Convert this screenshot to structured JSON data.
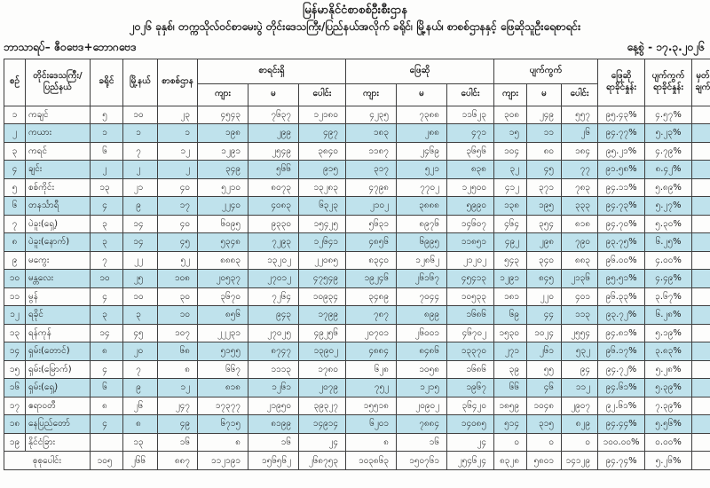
{
  "header": {
    "title1": "မြန်မာနိုင်ငံစာစစ်ဦးစီးဌာန",
    "title2": "၂၀၂၆ ခုနှစ်၊ တက္ကသိုလ်ဝင်စာမေးပွဲ တိုင်းဒေသကြီး/ပြည်နယ်အလိုက် ခရိုင်၊ မြို့နယ်၊ စာစစ်ဌာနနှင့် ဖြေဆိုသူဦးရေစာရင်း",
    "subject": "ဘာသာရပ်– ဇီဝဗေဒ+ဘောဂဗေဒ",
    "date": "နေ့စွဲ - ၁၇.၃.၂၀၂၆"
  },
  "colors": {
    "stripe": "#bfe2ec",
    "border": "#3f3f3f",
    "ink": "#1b1b1b"
  },
  "table": {
    "headers": {
      "sn": "စဉ်",
      "region": "တိုင်းဒေသကြီး/\nပြည်နယ်",
      "district": "ခရိုင်",
      "township": "မြို့နယ်",
      "center": "စာစစ်ဌာန",
      "registered": "စာရင်းရှိ",
      "attended": "ဖြေဆို",
      "absent": "ပျက်ကွက်",
      "male": "ကျား",
      "female": "မ",
      "total": "ပေါင်း",
      "attended_pct": "ဖြေဆို\nရာခိုင်နှုန်း",
      "absent_pct": "ပျက်ကွက်\nရာခိုင်နှုန်း",
      "remark": "မှတ်\nချက်"
    },
    "rows": [
      [
        "၁",
        "ကချင်",
        "၅",
        "၁၀",
        "၂၃",
        "၄၅၄၃",
        "၇၆၃၇",
        "၁၂၁၈၀",
        "၄၂၃၅",
        "၇၃၈၈",
        "၁၁၆၂၃",
        "၃၀၈",
        "၂၄၉",
        "၅၅၇",
        "၉၅.၄၃%",
        "၄.၅၇%"
      ],
      [
        "၂",
        "ကယား",
        "၁",
        "၁",
        "၁",
        "၁၉၈",
        "၂၉၉",
        "၄၉၇",
        "၁၈၃",
        "၂၈၈",
        "၄၇၁",
        "၁၅",
        "၁၁",
        "၂၆",
        "၉၄.၇၇%",
        "၅.၂၃%"
      ],
      [
        "၃",
        "ကရင်",
        "၆",
        "၇",
        "၁၂",
        "၁၂၉၁",
        "၂၅၄၉",
        "၃၈၄၀",
        "၁၁၈၇",
        "၂၄၆၉",
        "၃၆၅၆",
        "၁၀၄",
        "၈၀",
        "၁၈၄",
        "၉၅.၂၁%",
        "၄.၇၉%"
      ],
      [
        "၄",
        "ချင်း",
        "၂",
        "၂",
        "၂",
        "၃၄၉",
        "၅၆၆",
        "၉၁၅",
        "၃၁၇",
        "၅၂၁",
        "၈၃၈",
        "၃၂",
        "၄၅",
        "၇၇",
        "၉၁.၅၈%",
        "၈.၄၂%"
      ],
      [
        "၅",
        "စစ်ကိုင်း",
        "၁၃",
        "၂၁",
        "၄၀",
        "၅၂၁၀",
        "၈၀၇၃",
        "၁၃၂၈၃",
        "၄၇၉၈",
        "၇၇၀၂",
        "၁၂၅၀၀",
        "၄၁၂",
        "၃၇၁",
        "၇၈၃",
        "၉၄.၁၁%",
        "၅.၈၉%"
      ],
      [
        "၆",
        "တနင်္သာရီ",
        "၄",
        "၉",
        "၁၇",
        "၂၂၄၀",
        "၄၀၈၃",
        "၆၃၂၃",
        "၂၁၀၂",
        "၃၈၈၈",
        "၅၉၉၀",
        "၁၃၈",
        "၁၉၅",
        "၃၃၃",
        "၉၄.၇၃%",
        "၅.၂၇%"
      ],
      [
        "၇",
        "ပဲခူး(ရှေ့)",
        "၃",
        "၁၄",
        "၄၀",
        "၆၀၉၅",
        "၉၃၃၀",
        "၁၅၄၂၅",
        "၅၆၃၁",
        "၈၉၇၆",
        "၁၄၆၀၇",
        "၄၆၄",
        "၃၅၄",
        "၈၁၈",
        "၉၄.၇၀%",
        "၅.၃၀%"
      ],
      [
        "၈",
        "ပဲခူး(နောက်)",
        "၃",
        "၁၄",
        "၄၅",
        "၅၃၄၈",
        "၇၂၉၃",
        "၁၂၆၄၁",
        "၄၈၅၆",
        "၆၉၉၅",
        "၁၁၈၅၁",
        "၄၉၂",
        "၂၉၈",
        "၇၉၀",
        "၉၃.၇၅%",
        "၆.၂၅%"
      ],
      [
        "၉",
        "မကွေး",
        "၇",
        "၂၂",
        "၅၂",
        "၈၈၈၃",
        "၁၃၂၀၂",
        "၂၂၀၈၅",
        "၈၃၄၀",
        "၁၂၈၆၂",
        "၂၁၂၀၂",
        "၅၄၃",
        "၃၄၀",
        "၈၈၃",
        "၉၆.၀၀%",
        "၄.၀၀%"
      ],
      [
        "၁၀",
        "မန္တလေး",
        "၁၀",
        "၂၅",
        "၁၀၈",
        "၂၀၅၃၇",
        "၂၇၀၁၂",
        "၄၇၅၄၉",
        "၁၉၂၄၆",
        "၂၆၁၆၇",
        "၄၅၄၁၃",
        "၁၂၉၁",
        "၈၄၅",
        "၂၁၃၆",
        "၉၅.၅၁%",
        "၄.၄၉%"
      ],
      [
        "၁၁",
        "မွန်",
        "၄",
        "၁၀",
        "၃၀",
        "၃၆၇၀",
        "၇၂၆၄",
        "၁၀၉၃၄",
        "၃၄၈၉",
        "၇၀၄၄",
        "၁၀၅၃၃",
        "၁၈၁",
        "၂၂၀",
        "၄၀၁",
        "၉၆.၃၃%",
        "၃.၆၇%"
      ],
      [
        "၁၂",
        "ရခိုင်",
        "၃",
        "၃",
        "၁၀",
        "၈၅၆",
        "၉၄၃",
        "၁၇၉၉",
        "၇၈၇",
        "၈၉၉",
        "၁၆၈၆",
        "၆၉",
        "၄၄",
        "၁၁၃",
        "၉၃.၇၂%",
        "၆.၂၈%"
      ],
      [
        "၁၃",
        "ရန်ကုန်",
        "၁၄",
        "၄၅",
        "၁၀၇",
        "၂၂၂၃၁",
        "၂၇၀၂၅",
        "၄၉၂၅၆",
        "၂၀၇၀၁",
        "၂၆၀၀၁",
        "၄၆၇၀၂",
        "၁၅၃၀",
        "၁၀၂၄",
        "၂၅၅၄",
        "၉၄.၈၁%",
        "၅.၁၉%"
      ],
      [
        "၁၄",
        "ရှမ်း(တောင်)",
        "၈",
        "၂၀",
        "၆၈",
        "၅၁၅၅",
        "၈၇၄၇",
        "၁၃၉၀၂",
        "၄၈၈၄",
        "၈၄၈၆",
        "၁၃၃၇၀",
        "၂၇၁",
        "၂၆၁",
        "၅၃၂",
        "၉၆.၁၇%",
        "၃.၈၃%"
      ],
      [
        "၁၅",
        "ရှမ်း(မြောက်)",
        "၄",
        "၇",
        "၈",
        "၆၆၇",
        "၁၁၁၃",
        "၁၇၈၀",
        "၆၂၈",
        "၁၀၅၈",
        "၁၆၈၆",
        "၃၉",
        "၅၅",
        "၉၄",
        "၉၄.၇၂%",
        "၅.၂၈%"
      ],
      [
        "၁၆",
        "ရှမ်း(ရှေ့)",
        "၆",
        "၉",
        "၁၂",
        "၈၁၈",
        "၁၂၆၁",
        "၂၀၇၉",
        "၇၅၂",
        "၁၂၁၅",
        "၁၉၆၇",
        "၆၆",
        "၄၆",
        "၁၁၂",
        "၉၄.၆၁%",
        "၅.၃၉%"
      ],
      [
        "၁၇",
        "ဧရာဝတီ",
        "၈",
        "၂၆",
        "၂၄၇",
        "၁၇၃၇၇",
        "၂၁၉၅၀",
        "၃၉၃၂၇",
        "၁၅၅၁၈",
        "၂၀၉၀၂",
        "၃၆၄၂၀",
        "၁၈၅၉",
        "၁၀၄၈",
        "၂၉၀၇",
        "၉၂.၆၁%",
        "၇.၃၉%"
      ],
      [
        "၁၈",
        "နေပြည်တော်",
        "၄",
        "၈",
        "၄၉",
        "၆၇၁၅",
        "၈၁၉၉",
        "၁၄၉၁၄",
        "၆၂၀၁",
        "၇၈၈၄",
        "၁၄၀၈၅",
        "၅၁၄",
        "၃၁၅",
        "၈၂၉",
        "၉၄.၄၄%",
        "၅.၅၆%"
      ],
      [
        "၁၉",
        "နိုင်ငံခြား",
        "",
        "၁၃",
        "၁၆",
        "၈",
        "၁၆",
        "၂၄",
        "၈",
        "၁၆",
        "၂၄",
        "၀",
        "၀",
        "၀",
        "၁၀၀.၀၀%",
        "၀.၀၀%"
      ]
    ],
    "total_row": [
      "စုစုပေါင်း",
      "၁၀၅",
      "၂၆၆",
      "၈၈၇",
      "၁၁၂၁၉၁",
      "၁၅၆၅၆၂",
      "၂၆၈၇၅၃",
      "၁၀၃၈၆၃",
      "၁၅၀၇၆၁",
      "၂၅၄၆၂၄",
      "၈၃၂၈",
      "၅၈၀၁",
      "၁၄၁၂၉",
      "၉၄.၇၄%",
      "၅.၂၆%"
    ]
  }
}
